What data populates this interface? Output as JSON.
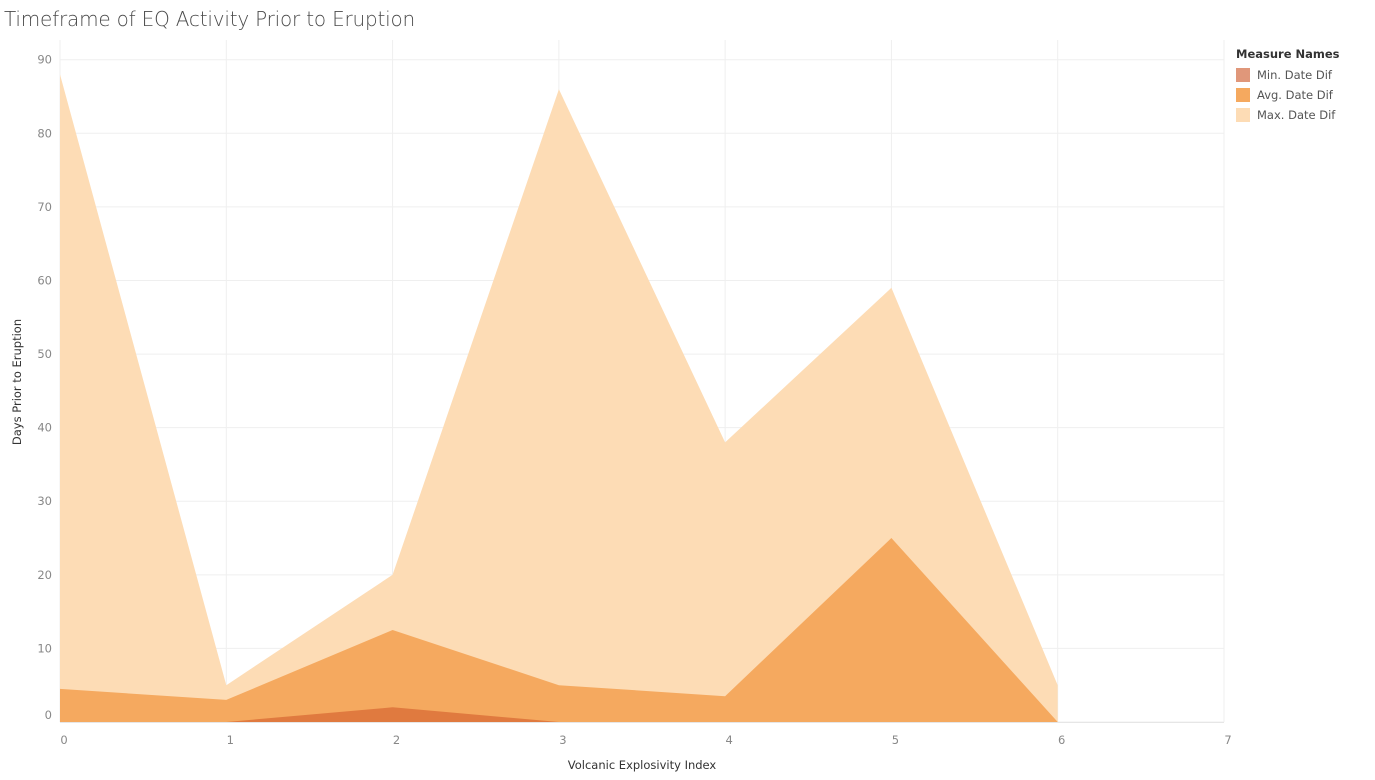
{
  "title": "Timeframe of EQ Activity Prior to Eruption",
  "legend": {
    "title": "Measure Names"
  },
  "chart_data": {
    "type": "area",
    "title": "Timeframe of EQ Activity Prior to Eruption",
    "xlabel": "Volcanic Explosivity Index",
    "ylabel": "Days Prior to Eruption",
    "x": [
      0,
      1,
      2,
      3,
      4,
      5,
      6
    ],
    "xlim": [
      0,
      7
    ],
    "ylim": [
      0,
      92
    ],
    "x_ticks": [
      "0",
      "1",
      "2",
      "3",
      "4",
      "5",
      "6",
      "7"
    ],
    "y_ticks": [
      "0",
      "10",
      "20",
      "30",
      "40",
      "50",
      "60",
      "70",
      "80",
      "90"
    ],
    "grid": true,
    "legend_position": "top-right",
    "series": [
      {
        "name": "Max. Date Dif",
        "color": "#fddcb5",
        "values": [
          88,
          5,
          20,
          86,
          38,
          59,
          5
        ]
      },
      {
        "name": "Avg. Date Dif",
        "color": "#f5a95f",
        "values": [
          4.5,
          3,
          12.5,
          5,
          3.5,
          25,
          0
        ]
      },
      {
        "name": "Min. Date Dif",
        "color": "#e07a3f",
        "values": [
          0,
          0,
          2,
          0,
          0,
          0,
          0
        ]
      }
    ],
    "legend_order": [
      "Min. Date Dif",
      "Avg. Date Dif",
      "Max. Date Dif"
    ],
    "legend_colors": [
      "#e0977a",
      "#f5a95f",
      "#fddcb5"
    ]
  }
}
